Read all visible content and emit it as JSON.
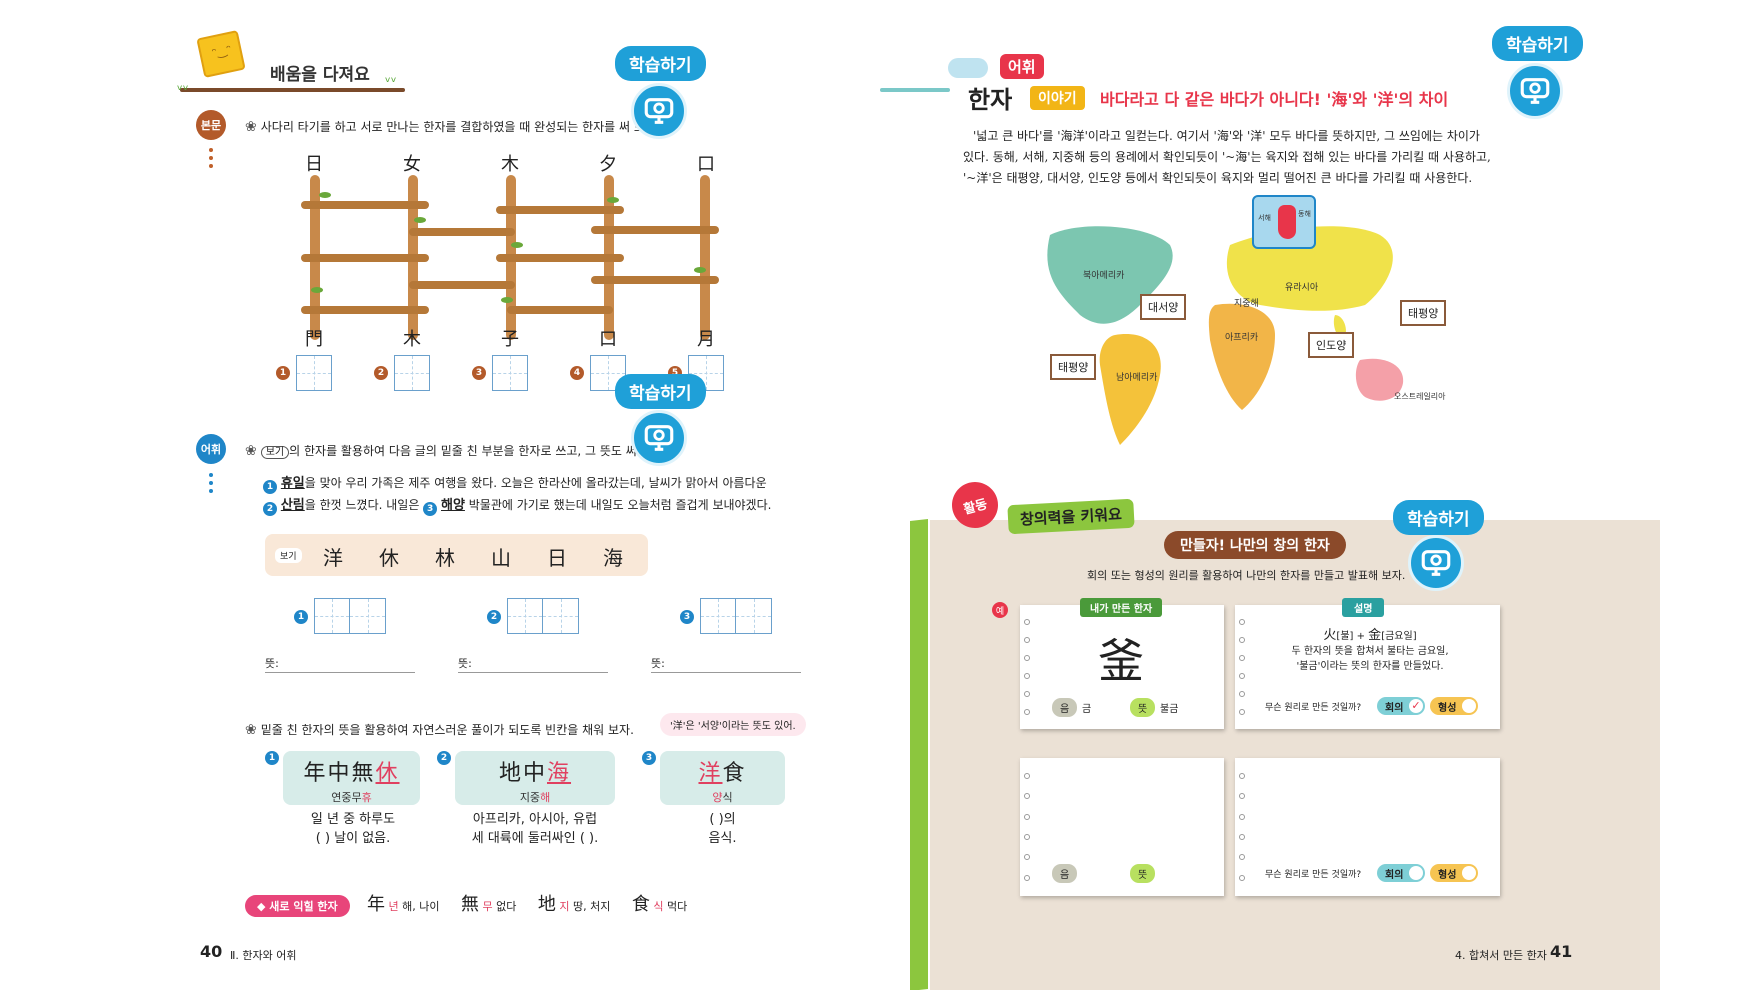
{
  "left_page": {
    "section_title": "배움을 다져요",
    "learn_btn": "학습하기",
    "badge_body": "본문",
    "badge_vocab": "어휘",
    "instruction1": "사다리 타기를 하고 서로 만나는 한자를 결합하였을 때 완성되는 한자를 써 보자.",
    "ladder_top": [
      "日",
      "女",
      "木",
      "夕",
      "口"
    ],
    "ladder_bottom": [
      "門",
      "木",
      "子",
      "口",
      "月"
    ],
    "answer_nums": [
      "1",
      "2",
      "3",
      "4",
      "5"
    ],
    "instruction2_box": "보기",
    "instruction2": "의 한자를 활용하여 다음 글의 밑줄 친 부분을 한자로 쓰고, 그 뜻도 써 보자.",
    "passage_line1": {
      "n1": "1",
      "w1": "휴일",
      "t1": "을 맞아 우리 가족은 제주 여행을 왔다. 오늘은 한라산에 올라갔는데, 날씨가 맑아서 아름다운"
    },
    "passage_line2": {
      "n2": "2",
      "w2": "산림",
      "t2": "을 한껏 느꼈다. 내일은 ",
      "n3": "3",
      "w3": "해양",
      "t3": " 박물관에 가기로 했는데 내일도 오늘처럼 즐겁게 보내야겠다."
    },
    "example_label": "보기",
    "example_chars": [
      "洋",
      "休",
      "林",
      "山",
      "日",
      "海"
    ],
    "write_nums": [
      "1",
      "2",
      "3"
    ],
    "meaning_label": "뜻:",
    "instruction3": "밑줄 친 한자의 뜻을 활용하여 자연스러운 풀이가 되도록 빈칸을 채워 보자.",
    "hint_bubble": "'洋'은 '서양'이라는 뜻도 있어.",
    "idioms": [
      {
        "num": "1",
        "han_a": "年中無",
        "han_b": "休",
        "han_c": "",
        "read_a": "연중무",
        "read_b": "휴",
        "read_c": "",
        "exp1": "일 년 중 하루도",
        "exp2": "(            ) 날이 없음."
      },
      {
        "num": "2",
        "han_a": "地中",
        "han_b": "海",
        "han_c": "",
        "read_a": "지중",
        "read_b": "해",
        "read_c": "",
        "exp1": "아프리카, 아시아, 유럽",
        "exp2": "세 대륙에 둘러싸인 (            )."
      },
      {
        "num": "3",
        "han_a": "",
        "han_b": "洋",
        "han_c": "食",
        "read_a": "",
        "read_b": "양",
        "read_c": "식",
        "exp1": "(            )의",
        "exp2": "음식."
      }
    ],
    "new_hanja_label": "◆ 새로 익힐 한자",
    "new_hanja": [
      {
        "ch": "年",
        "snd": "년",
        "mean": "해, 나이"
      },
      {
        "ch": "無",
        "snd": "무",
        "mean": "없다"
      },
      {
        "ch": "地",
        "snd": "지",
        "mean": "땅, 처지"
      },
      {
        "ch": "食",
        "snd": "식",
        "mean": "먹다"
      }
    ],
    "page_number": "40",
    "chapter": "Ⅱ. 한자와 어휘"
  },
  "right_page": {
    "title_tag": "어휘",
    "title_main": "한자",
    "title_story": "이야기",
    "title_text_a": "바다라고 다 같은 바다가 아니다! '",
    "title_hanja1": "海",
    "title_text_b": "'와 '",
    "title_hanja2": "洋",
    "title_text_c": "'의 차이",
    "learn_btn": "학습하기",
    "paragraph": [
      "'넓고 큰 바다'를 '海洋'이라고 일컫는다. 여기서 '海'와 '洋' 모두 바다를 뜻하지만, 그 쓰임에는 차이가",
      "있다. 동해, 서해, 지중해 등의 용례에서 확인되듯이 '~海'는 육지와 접해 있는 바다를 가리킬 때 사용하고,",
      "'~洋'은 태평양, 대서양, 인도양 등에서 확인되듯이 육지와 멀리 떨어진 큰 바다를 가리킬 때 사용한다."
    ],
    "map_labels": {
      "north_america": "북아메리카",
      "south_america": "남아메리카",
      "eurasia": "유라시아",
      "africa": "아프리카",
      "australia": "오스트레일리아",
      "mediterranean": "지중해",
      "atlantic": "대서양",
      "pacific_left": "태평양",
      "pacific_right": "태평양",
      "indian": "인도양",
      "west_sea": "서해",
      "east_sea": "동해"
    },
    "activity_badge": "활동",
    "activity_title": "창의력을 키워요",
    "banner": "만들자! 나만의 창의 한자",
    "activity_instr": "회의 또는 형성의 원리를 활용하여 나만의 한자를 만들고 발표해 보자.",
    "example_mark": "예",
    "my_hanja_tag": "내가 만든 한자",
    "my_hanja": "釜",
    "explain_tag": "설명",
    "explain_line1a": "火",
    "explain_line1b": "[불] + ",
    "explain_line1c": "金",
    "explain_line1d": "[금요일]",
    "explain_line2": "두 한자의 뜻을 합쳐서 불타는 금요일,",
    "explain_line3": "'불금'이라는 뜻의 한자를 만들었다.",
    "sound_label": "음",
    "sound_value": "금",
    "meaning_label": "뜻",
    "meaning_value": "불금",
    "principle_q": "무슨 원리로 만든 것일까?",
    "principle_a": "회의",
    "principle_b": "형성",
    "page_number": "41",
    "chapter": "4. 합쳐서 만든 한자"
  }
}
